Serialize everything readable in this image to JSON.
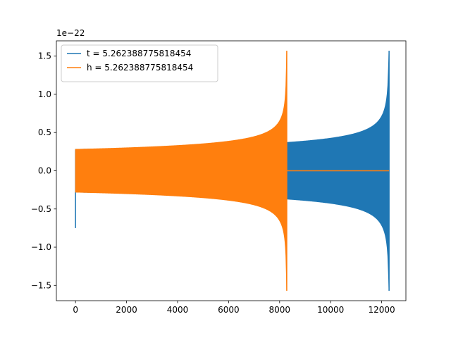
{
  "chart_data": {
    "type": "line",
    "title": "",
    "xlabel": "",
    "ylabel": "",
    "y_offset_label": "1e−22",
    "xlim": [
      -750,
      12950
    ],
    "ylim": [
      -1.7,
      1.7
    ],
    "x_ticks": [
      0,
      2000,
      4000,
      6000,
      8000,
      10000,
      12000
    ],
    "y_ticks": [
      -1.5,
      -1.0,
      -0.5,
      0.0,
      0.5,
      1.0,
      1.5
    ],
    "legend_position": "top-left",
    "grid": false,
    "series": [
      {
        "name": "t = 5.262388775818454",
        "color": "#1f77b4",
        "envelope": {
          "start": 0,
          "end": 12290,
          "amp_start": 0.28,
          "amp_peak": 1.57,
          "start_spike": [
            0.27,
            -0.75
          ]
        },
        "flat_after": null
      },
      {
        "name": "h = 5.262388775818454",
        "color": "#ff7f0e",
        "envelope": {
          "start": 0,
          "end": 8280,
          "amp_start": 0.28,
          "amp_peak": 1.57,
          "start_spike": null
        },
        "flat_after": [
          8280,
          12290
        ]
      }
    ]
  }
}
